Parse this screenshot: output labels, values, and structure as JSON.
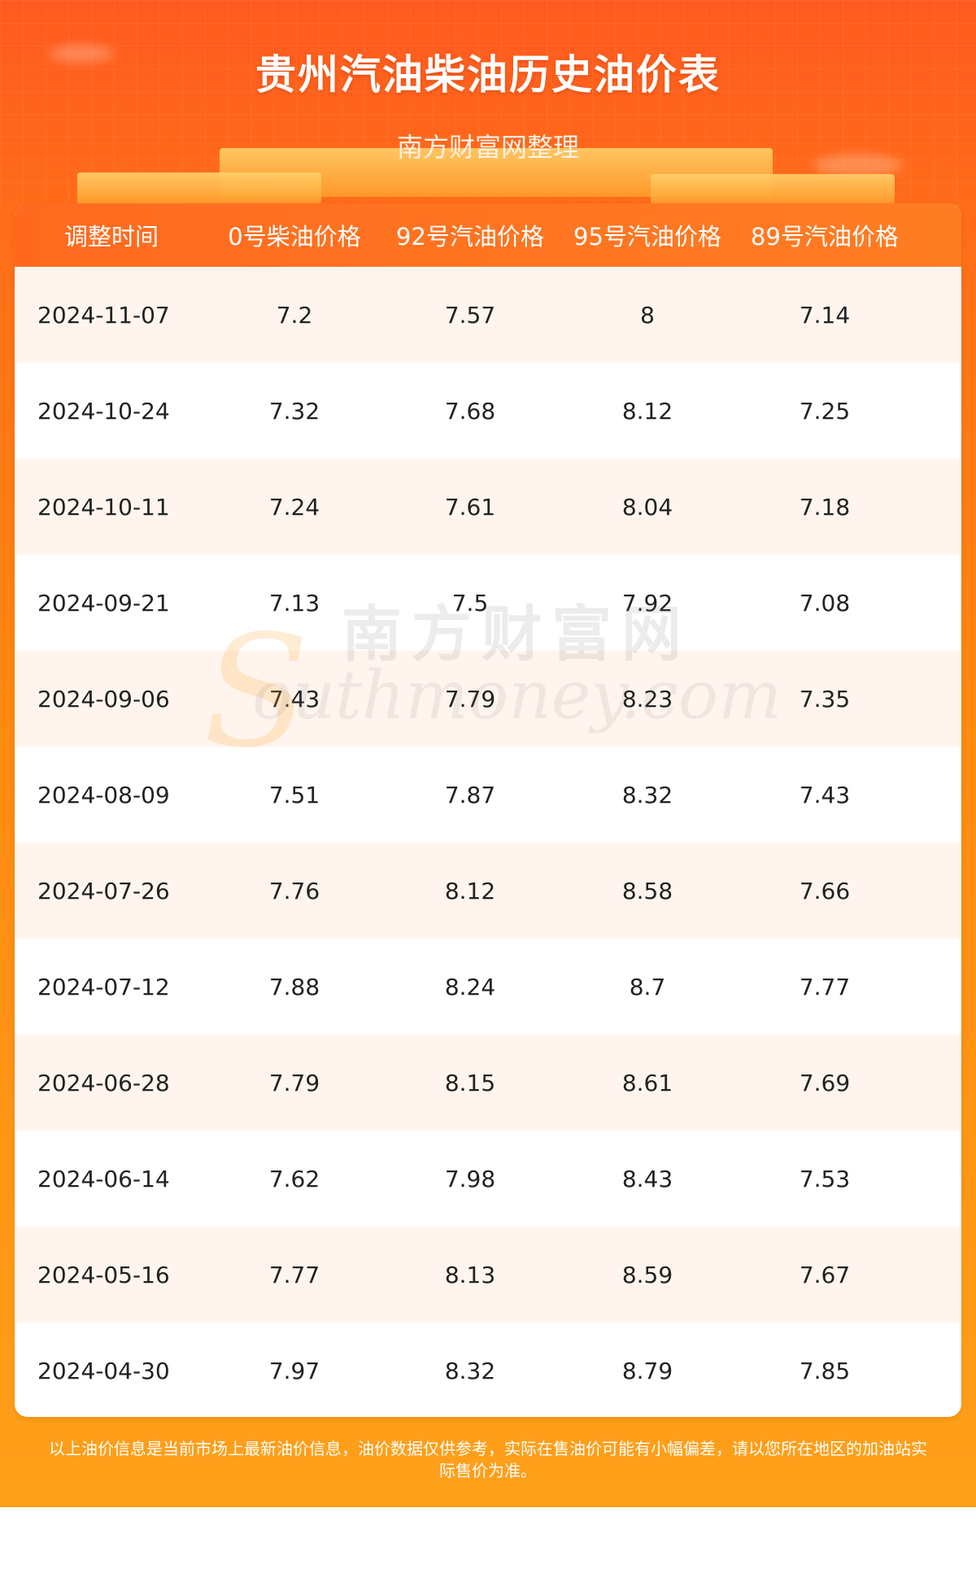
{
  "header": {
    "title": "贵州汽油柴油历史油价表",
    "subtitle": "南方财富网整理"
  },
  "table": {
    "columns": [
      "调整时间",
      "0号柴油价格",
      "92号汽油价格",
      "95号汽油价格",
      "89号汽油价格"
    ],
    "rows": [
      [
        "2024-11-07",
        "7.2",
        "7.57",
        "8",
        "7.14"
      ],
      [
        "2024-10-24",
        "7.32",
        "7.68",
        "8.12",
        "7.25"
      ],
      [
        "2024-10-11",
        "7.24",
        "7.61",
        "8.04",
        "7.18"
      ],
      [
        "2024-09-21",
        "7.13",
        "7.5",
        "7.92",
        "7.08"
      ],
      [
        "2024-09-06",
        "7.43",
        "7.79",
        "8.23",
        "7.35"
      ],
      [
        "2024-08-09",
        "7.51",
        "7.87",
        "8.32",
        "7.43"
      ],
      [
        "2024-07-26",
        "7.76",
        "8.12",
        "8.58",
        "7.66"
      ],
      [
        "2024-07-12",
        "7.88",
        "8.24",
        "8.7",
        "7.77"
      ],
      [
        "2024-06-28",
        "7.79",
        "8.15",
        "8.61",
        "7.69"
      ],
      [
        "2024-06-14",
        "7.62",
        "7.98",
        "8.43",
        "7.53"
      ],
      [
        "2024-05-16",
        "7.77",
        "8.13",
        "8.59",
        "7.67"
      ],
      [
        "2024-04-30",
        "7.97",
        "8.32",
        "8.79",
        "7.85"
      ]
    ]
  },
  "watermark": {
    "cn": "南方财富网",
    "en": "outhmoney.com",
    "letter": "S"
  },
  "footer": {
    "line1": "以上油价信息是当前市场上最新油价信息，油价数据仅供参考，实际在售油价可能有小幅偏差，请以您所在地区的加油站实",
    "line2": "际售价为准。"
  },
  "colors": {
    "accent": "#ff6a1f",
    "row_alt": "#fff5ee"
  }
}
